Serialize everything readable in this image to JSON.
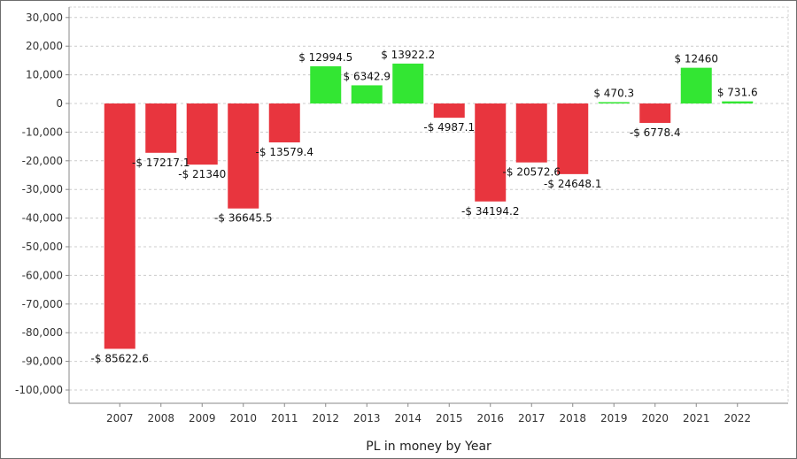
{
  "chart_data": {
    "type": "bar",
    "title": "",
    "xlabel": "PL in money by Year",
    "ylabel": "",
    "ylim": [
      -105000,
      32500
    ],
    "yticks": [
      30000,
      20000,
      10000,
      0,
      -10000,
      -20000,
      -30000,
      -40000,
      -50000,
      -60000,
      -70000,
      -80000,
      -90000,
      -100000
    ],
    "ytick_labels": [
      "30,000",
      "20,000",
      "10,000",
      "0",
      "-10,000",
      "-20,000",
      "-30,000",
      "-40,000",
      "-50,000",
      "-60,000",
      "-70,000",
      "-80,000",
      "-90,000",
      "-100,000"
    ],
    "grid": true,
    "legend": "none",
    "colors": {
      "positive": "#33e633",
      "negative": "#e8353e",
      "grid": "#cccccc",
      "axis": "#888888"
    },
    "categories": [
      "2007",
      "2008",
      "2009",
      "2010",
      "2011",
      "2012",
      "2013",
      "2014",
      "2015",
      "2016",
      "2017",
      "2018",
      "2019",
      "2020",
      "2021",
      "2022"
    ],
    "values": [
      -85622.6,
      -17217.1,
      -21340,
      -36645.5,
      -13579.4,
      12994.5,
      6342.9,
      13922.2,
      -4987.1,
      -34194.2,
      -20572.6,
      -24648.1,
      470.3,
      -6778.4,
      12460,
      731.6
    ],
    "data_labels": [
      "-$ 85622.6",
      "-$ 17217.1",
      "-$ 21340",
      "-$ 36645.5",
      "-$ 13579.4",
      "$ 12994.5",
      "$ 6342.9",
      "$ 13922.2",
      "-$ 4987.1",
      "-$ 34194.2",
      "-$ 20572.6",
      "-$ 24648.1",
      "$ 470.3",
      "-$ 6778.4",
      "$ 12460",
      "$ 731.6"
    ]
  }
}
